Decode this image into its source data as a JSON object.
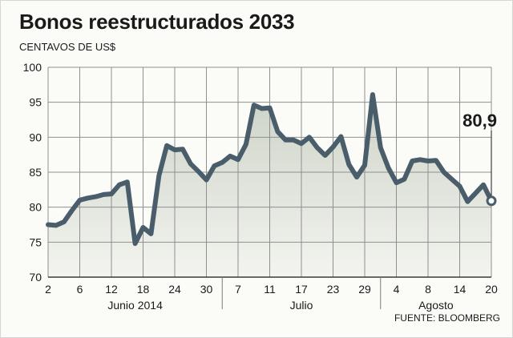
{
  "title": "Bonos reestructurados 2033",
  "subtitle": "CENTAVOS DE US$",
  "source": "FUENTE: BLOOMBERG",
  "colors": {
    "line": "#4a5d6a",
    "area_top": "#cdd3c7",
    "area_bottom": "#f3f4ef",
    "grid": "#8f8f8f",
    "text": "#1a1a1a"
  },
  "chart_data": {
    "type": "line",
    "title": "Bonos reestructurados 2033",
    "ylabel": "CENTAVOS DE US$",
    "xlabel": "",
    "ylim": [
      70,
      100
    ],
    "yticks": [
      70,
      75,
      80,
      85,
      90,
      95,
      100
    ],
    "x_tick_labels": [
      "2",
      "6",
      "12",
      "18",
      "24",
      "30",
      "7",
      "11",
      "17",
      "23",
      "29",
      "4",
      "8",
      "14",
      "20"
    ],
    "month_labels": [
      "Junio 2014",
      "Julio",
      "Agosto"
    ],
    "grid": true,
    "last_value_label": "80,9",
    "series": [
      {
        "values": [
          77.5,
          77.4,
          77.9,
          79.5,
          81.0,
          81.3,
          81.5,
          81.8,
          81.9,
          83.2,
          83.6,
          74.8,
          77.1,
          76.2,
          84.5,
          88.8,
          88.2,
          88.3,
          86.2,
          85.1,
          83.9,
          85.9,
          86.4,
          87.3,
          86.8,
          89.0,
          94.6,
          94.1,
          94.2,
          90.8,
          89.6,
          89.6,
          89.1,
          90.0,
          88.5,
          87.4,
          88.6,
          90.1,
          86.1,
          84.3,
          86.0,
          96.1,
          88.5,
          85.6,
          83.5,
          84.0,
          86.6,
          86.8,
          86.6,
          86.7,
          85.0,
          84.0,
          83.0,
          80.8,
          82.0,
          83.2,
          80.9
        ]
      }
    ]
  }
}
